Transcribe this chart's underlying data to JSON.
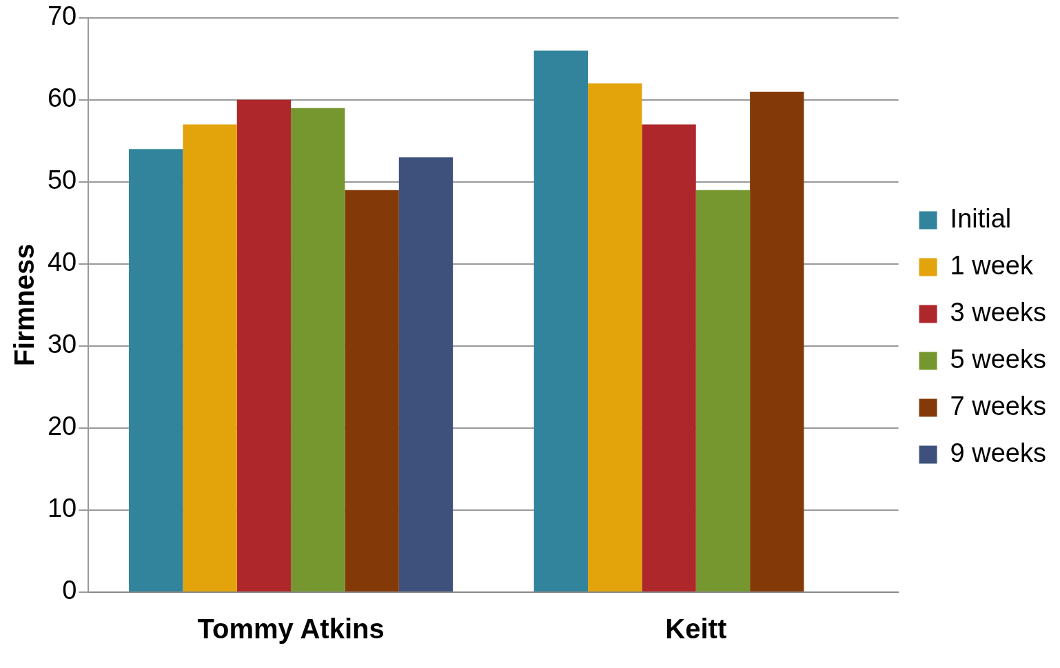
{
  "chart_data": {
    "type": "bar",
    "ylabel": "Firmness",
    "categories": [
      "Tommy Atkins",
      "Keitt"
    ],
    "series": [
      {
        "name": "Initial",
        "color": "#31849b",
        "values": [
          54,
          66
        ]
      },
      {
        "name": "1 week",
        "color": "#e2a40a",
        "values": [
          57,
          62
        ]
      },
      {
        "name": "3 weeks",
        "color": "#ae272a",
        "values": [
          60,
          57
        ]
      },
      {
        "name": "5 weeks",
        "color": "#76972f",
        "values": [
          59,
          49
        ]
      },
      {
        "name": "7 weeks",
        "color": "#833a08",
        "values": [
          49,
          61
        ]
      },
      {
        "name": "9 weeks",
        "color": "#3e507c",
        "values": [
          53,
          null
        ]
      }
    ],
    "ylim": [
      0,
      70
    ],
    "yticks": [
      0,
      10,
      20,
      30,
      40,
      50,
      60,
      70
    ],
    "grid": "y",
    "legend": "right"
  }
}
